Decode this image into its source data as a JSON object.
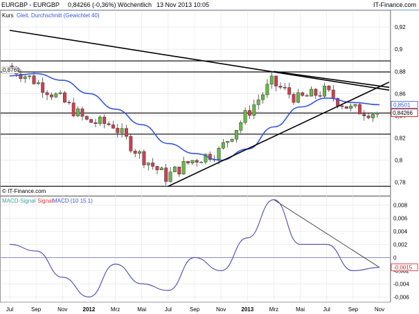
{
  "header": {
    "instrument": "EURGBP - EURGBP",
    "change": "0,84266 (-0,36%)",
    "interval": "Wöchentlich",
    "date": "13 Nov 2013 10:05",
    "brand": "IT-Finance.com"
  },
  "price_panel": {
    "series_label": "Kurs",
    "ma_label": "Gleit. Durchschnitt (Gewichtet 40)",
    "copyright": "© IT-Finance.com",
    "left_tag": "0,8769",
    "ma_value": "0,8501",
    "last_value": "0,84266"
  },
  "macd_panel": {
    "label_signal": "MACD-Signal",
    "label_signal2": "Signal",
    "label_macd": "MACD (10 15 1)",
    "last_value": "-0,0015"
  },
  "colors": {
    "up_candle": "#66bb44",
    "down_candle": "#d04050",
    "ma_line": "#3355dd",
    "macd_line": "#5a55b5",
    "signal_line": "#dd3333",
    "last_tag": "#cc2222"
  },
  "chart_data": [
    {
      "type": "candlestick",
      "title": "",
      "x": [
        "Jul 2011",
        "Sep 2011",
        "Nov 2011",
        "Jan 2012",
        "Mär 2012",
        "Mai 2012",
        "Jul 2012",
        "Sep 2012",
        "Nov 2012",
        "Jan 2013",
        "Mär 2013",
        "Mai 2013",
        "Jul 2013",
        "Sep 2013",
        "Nov 2013"
      ],
      "x_tick_labels": [
        "Jul",
        "Sep",
        "Nov",
        "2012",
        "Mrz",
        "Mai",
        "Jul",
        "Sep",
        "Nov",
        "2013",
        "Mrz",
        "Mai",
        "Jul",
        "Sep",
        "Nov"
      ],
      "close": [
        0.885,
        0.872,
        0.855,
        0.835,
        0.832,
        0.805,
        0.785,
        0.8,
        0.808,
        0.84,
        0.87,
        0.855,
        0.862,
        0.846,
        0.8427
      ],
      "moving_average_wma40": [
        0.876,
        0.878,
        0.872,
        0.86,
        0.846,
        0.832,
        0.815,
        0.806,
        0.8,
        0.81,
        0.83,
        0.848,
        0.856,
        0.852,
        0.85
      ],
      "y_ticks": [
        0.78,
        0.8,
        0.82,
        0.84,
        0.86,
        0.88,
        0.9,
        0.92
      ],
      "y_tick_labels": [
        "0,78",
        "0,8",
        "0,82",
        "0,84",
        "0,86",
        "0,88",
        "0,9",
        "0,92"
      ],
      "ylim": [
        0.768,
        0.935
      ],
      "horizontal_lines": [
        0.8895,
        0.8795,
        0.8425,
        0.8235,
        0.7765
      ],
      "trend_lines": [
        {
          "from": [
            "Jul 2011",
            0.917
          ],
          "to": [
            "Nov 2013",
            0.8645
          ]
        },
        {
          "from": [
            "Jul 2012",
            0.7765
          ],
          "to": [
            "Nov 2013",
            0.868
          ]
        },
        {
          "from": [
            "Mär 2013",
            0.88
          ],
          "to": [
            "Nov 2013",
            0.866
          ]
        }
      ],
      "grid": true
    },
    {
      "type": "line",
      "title": "",
      "x": [
        "Jul 2011",
        "Sep 2011",
        "Nov 2011",
        "Jan 2012",
        "Mär 2012",
        "Mai 2012",
        "Jul 2012",
        "Sep 2012",
        "Nov 2012",
        "Jan 2013",
        "Mär 2013",
        "Mai 2013",
        "Jul 2013",
        "Sep 2013",
        "Nov 2013"
      ],
      "series": [
        {
          "name": "MACD (10 15 1)",
          "values": [
            0.002,
            0.001,
            -0.003,
            -0.006,
            -0.001,
            -0.004,
            -0.005,
            0.0,
            -0.002,
            0.003,
            0.0088,
            0.002,
            0.002,
            -0.002,
            -0.0015
          ]
        }
      ],
      "y_ticks": [
        -0.006,
        -0.004,
        -0.002,
        0.0,
        0.002,
        0.004,
        0.006,
        0.008
      ],
      "y_tick_labels": [
        "-0,006",
        "-0,004",
        "-0,002",
        "0",
        "0,002",
        "0,004",
        "0,006",
        "0,008"
      ],
      "ylim": [
        -0.0068,
        0.0093
      ],
      "zero_line": 0,
      "trend_lines": [
        {
          "from": [
            "Mär 2013",
            0.0088
          ],
          "to": [
            "Nov 2013",
            -0.0015
          ]
        }
      ],
      "grid": true
    }
  ]
}
